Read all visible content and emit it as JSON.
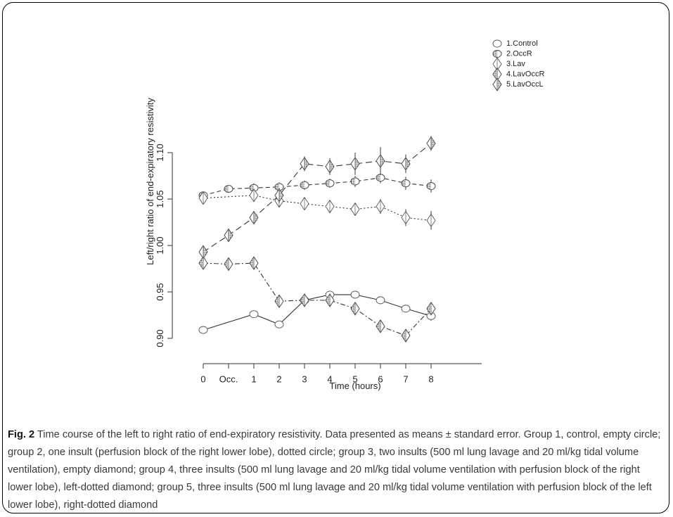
{
  "chart_data": {
    "type": "line",
    "xlabel": "Time (hours)",
    "ylabel": "Left/right ratio of end-expiratory resistivity",
    "ylim": [
      0.9,
      1.11
    ],
    "yticks": [
      "0.90",
      "0.95",
      "1.00",
      "1.05",
      "1.10"
    ],
    "categories": [
      "0",
      "Occ.",
      "1",
      "2",
      "3",
      "4",
      "5",
      "6",
      "7",
      "8"
    ],
    "grid": false,
    "legend_position": "top-right",
    "series": [
      {
        "name": "1.Control",
        "marker": "empty-circle",
        "line": "solid",
        "values": [
          0.909,
          null,
          0.926,
          0.915,
          0.941,
          0.947,
          0.947,
          0.941,
          0.932,
          0.924
        ],
        "errors": [
          0.003,
          null,
          0.004,
          0.004,
          0.003,
          0.004,
          0.004,
          0.004,
          0.004,
          0.005
        ]
      },
      {
        "name": "2.OccR",
        "marker": "dotted-circle",
        "line": "dashed",
        "values": [
          1.054,
          1.061,
          1.062,
          1.063,
          1.065,
          1.067,
          1.069,
          1.073,
          1.067,
          1.064
        ],
        "errors": [
          0.003,
          0.004,
          0.005,
          0.005,
          0.005,
          0.005,
          0.006,
          0.006,
          0.007,
          0.007
        ]
      },
      {
        "name": "3.Lav",
        "marker": "empty-diamond",
        "line": "dotted",
        "values": [
          1.051,
          null,
          1.054,
          1.048,
          1.045,
          1.042,
          1.039,
          1.042,
          1.03,
          1.027
        ],
        "errors": [
          0.005,
          null,
          0.006,
          0.007,
          0.006,
          0.007,
          0.007,
          0.008,
          0.009,
          0.01
        ]
      },
      {
        "name": "4.LavOccR",
        "marker": "left-dotted-diamond",
        "line": "dashdot",
        "values": [
          0.981,
          0.98,
          0.981,
          0.94,
          0.941,
          0.941,
          0.932,
          0.913,
          0.903,
          0.932
        ],
        "errors": [
          0.005,
          0.005,
          0.006,
          0.006,
          0.004,
          0.006,
          0.006,
          0.006,
          0.005,
          0.005
        ]
      },
      {
        "name": "5.LavOccL",
        "marker": "right-dotted-diamond",
        "line": "longdash",
        "values": [
          0.993,
          1.011,
          1.03,
          1.054,
          1.088,
          1.085,
          1.088,
          1.091,
          1.088,
          1.11
        ],
        "errors": [
          0.006,
          0.007,
          0.007,
          0.008,
          0.008,
          0.009,
          0.012,
          0.015,
          0.01,
          0.008
        ]
      }
    ]
  },
  "caption": {
    "label": "Fig. 2",
    "text": "Time course of the left to right ratio of end-expiratory resistivity. Data presented as means ± standard error. Group 1, control, empty circle; group 2, one insult (perfusion block of the right lower lobe), dotted circle; group 3, two insults (500 ml lung lavage and 20 ml/kg tidal volume ventilation), empty diamond; group 4, three insults (500 ml lung lavage and 20 ml/kg tidal volume ventilation with perfusion block of the right lower lobe), left-dotted diamond; group 5, three insults (500 ml lung lavage and 20 ml/kg tidal volume ventilation with perfusion block of the left lower lobe), right-dotted diamond"
  },
  "colors": {
    "ink": "#333333",
    "dot_fill": "#666666",
    "caption_text": "#3a3a3a"
  }
}
